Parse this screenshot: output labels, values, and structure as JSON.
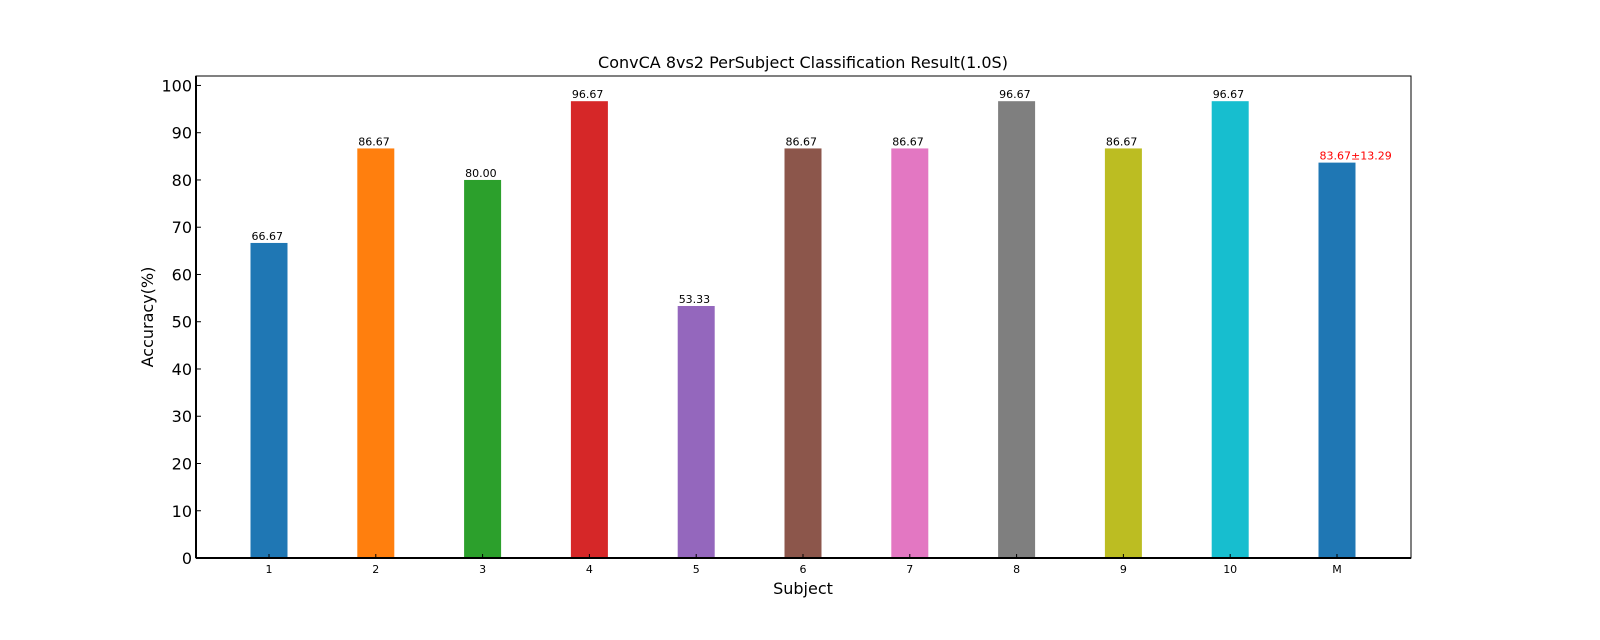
{
  "chart_data": {
    "type": "bar",
    "title": "ConvCA 8vs2 PerSubject Classification Result(1.0S)",
    "xlabel": "Subject",
    "ylabel": "Accuracy(%)",
    "ylim": [
      0,
      102
    ],
    "yticks": [
      0,
      10,
      20,
      30,
      40,
      50,
      60,
      70,
      80,
      90,
      100
    ],
    "categories": [
      "1",
      "2",
      "3",
      "4",
      "5",
      "6",
      "7",
      "8",
      "9",
      "10",
      "M"
    ],
    "values": [
      66.67,
      86.67,
      80.0,
      96.67,
      53.33,
      86.67,
      86.67,
      96.67,
      86.67,
      96.67,
      83.67
    ],
    "value_labels": [
      "66.67",
      "86.67",
      "80.00",
      "96.67",
      "53.33",
      "86.67",
      "86.67",
      "96.67",
      "86.67",
      "96.67",
      "83.67±13.29"
    ],
    "colors": [
      "#1f77b4",
      "#ff7f0e",
      "#2ca02c",
      "#d62728",
      "#9467bd",
      "#8c564b",
      "#e377c2",
      "#7f7f7f",
      "#bcbd22",
      "#17becf",
      "#1f77b4"
    ],
    "label_colors": [
      "#000000",
      "#000000",
      "#000000",
      "#000000",
      "#000000",
      "#000000",
      "#000000",
      "#000000",
      "#000000",
      "#000000",
      "#ff0000"
    ],
    "grid": false,
    "legend": "none"
  }
}
